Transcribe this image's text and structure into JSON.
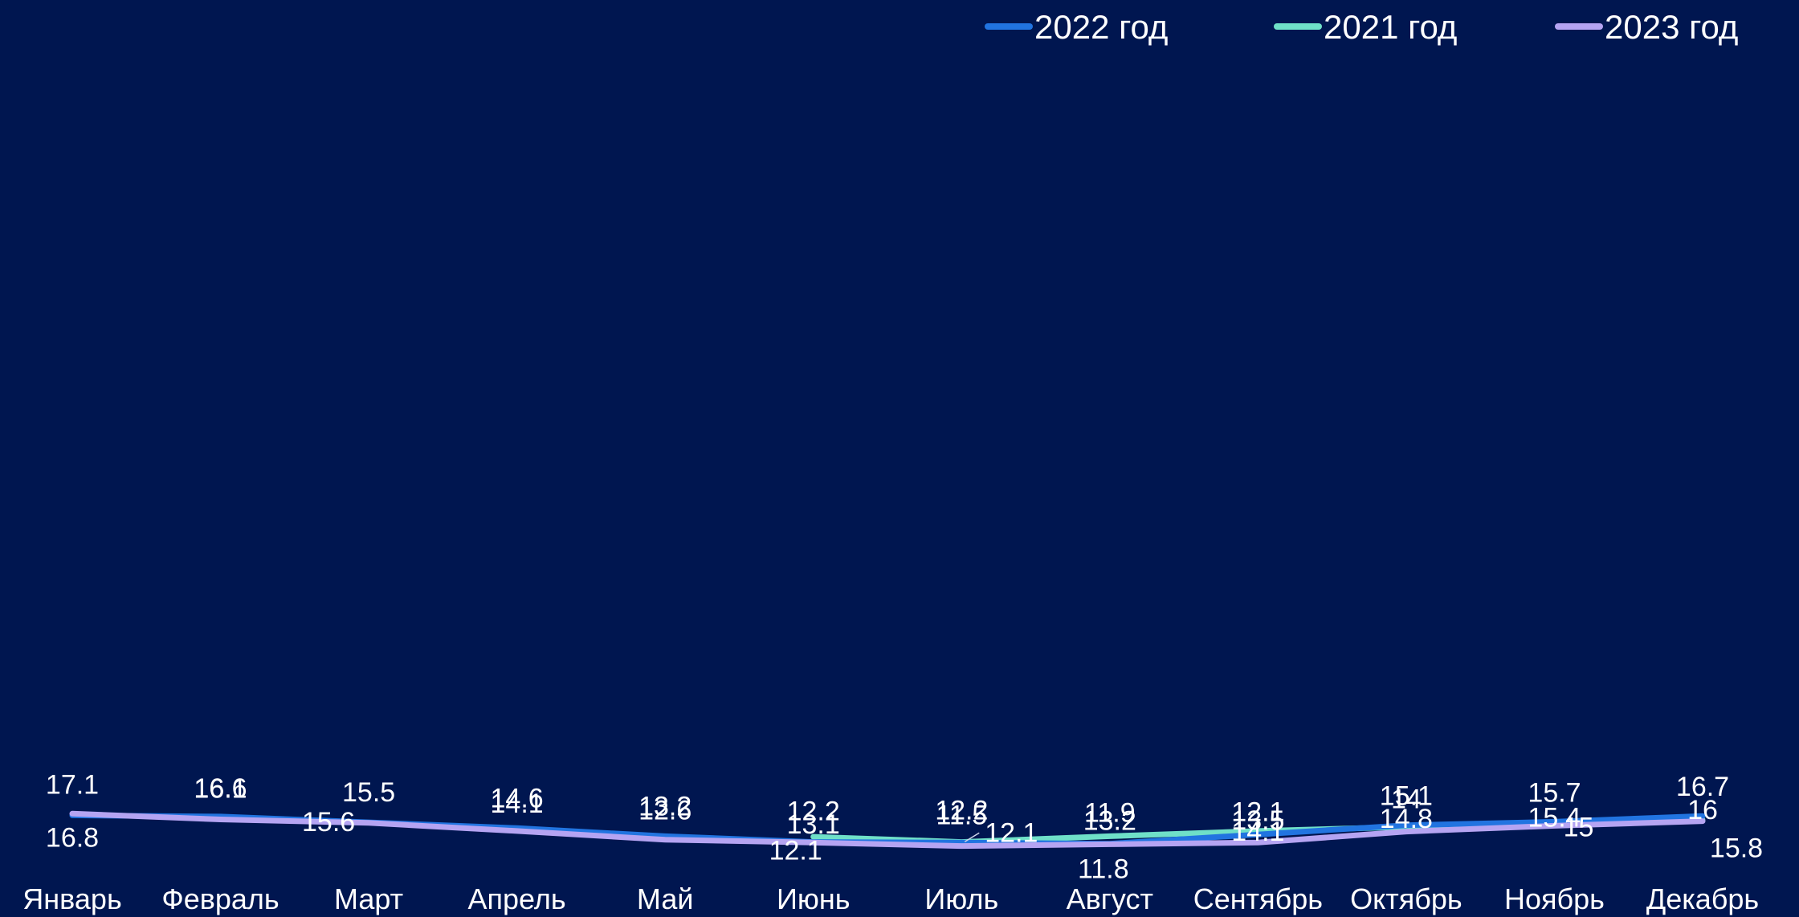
{
  "chart_data": {
    "type": "line",
    "categories": [
      "Январь",
      "Февраль",
      "Март",
      "Апрель",
      "Май",
      "Июнь",
      "Июль",
      "Август",
      "Сентябрь",
      "Октябрь",
      "Ноябрь",
      "Декабрь"
    ],
    "series": [
      {
        "name": "2022 год",
        "color": "#2174e0",
        "values": [
          16.8,
          16.6,
          15.6,
          14.6,
          13.2,
          12.2,
          12.1,
          11.9,
          13.5,
          15.1,
          15.7,
          16.7
        ],
        "value_labels": [
          "16.8",
          "16.6",
          "15.6",
          "14.6",
          "13.2",
          "12.2",
          "12.1",
          "11.9",
          "13.5",
          "15.1",
          "15.7",
          "16.7"
        ]
      },
      {
        "name": "2021 год",
        "color": "#6fe0c8",
        "values": [
          null,
          null,
          null,
          null,
          null,
          13.1,
          12.2,
          13.2,
          14.1,
          14.8,
          15.4,
          16
        ],
        "value_labels": [
          null,
          null,
          null,
          null,
          null,
          "13.1",
          "12.2",
          "13.2",
          "14.1",
          "14.8",
          "15.4",
          "16"
        ]
      },
      {
        "name": "2023 год",
        "color": "#b5a4f2",
        "values": [
          17.1,
          16.1,
          15.5,
          14.1,
          12.6,
          12.1,
          11.5,
          11.8,
          12.1,
          14,
          15,
          15.8
        ],
        "value_labels": [
          "17.1",
          "16.1",
          "15.5",
          "14.1",
          "12.6",
          "12.1",
          "11.5",
          "11.8",
          "12.1",
          "14",
          "15",
          "15.8"
        ]
      }
    ],
    "legend_order": [
      "2022 год",
      "2021 год",
      "2023 год"
    ],
    "legend_position": "top-right",
    "ylim": [
      10.7,
      17.7
    ],
    "grid": false,
    "title": "",
    "xlabel": "",
    "ylabel": ""
  }
}
